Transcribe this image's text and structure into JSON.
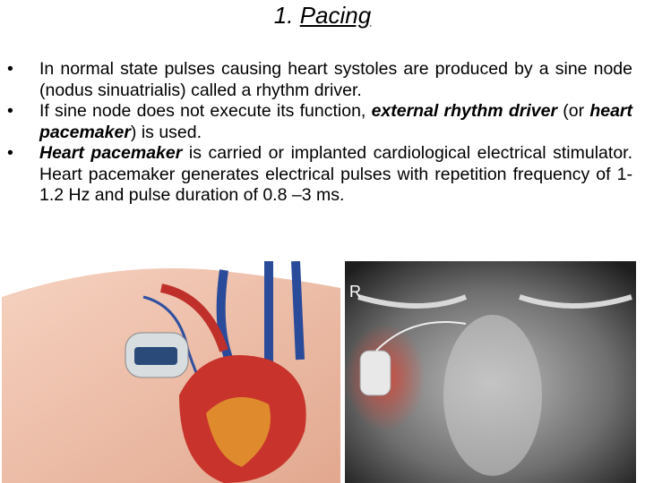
{
  "header": {
    "number": "1.",
    "title": "Pacing"
  },
  "bullets": [
    [
      {
        "text": "In normal state pulses causing heart systoles are produced by a sine node (nodus sinuatrialis) called a rhythm driver.",
        "emphasis": false
      }
    ],
    [
      {
        "text": "If sine node does not execute its function, ",
        "emphasis": false
      },
      {
        "text": "external rhythm driver",
        "emphasis": true
      },
      {
        "text": " (or ",
        "emphasis": false
      },
      {
        "text": "heart pacemaker",
        "emphasis": true
      },
      {
        "text": ") is used.",
        "emphasis": false
      }
    ],
    [
      {
        "text": "Heart pacemaker",
        "emphasis": true
      },
      {
        "text": " is carried or implanted cardiological electrical stimulator. Heart pacemaker generates electrical pulses with repetition frequency of 1-1.2 Hz and pulse duration of 0.8 –3 ms.",
        "emphasis": false
      }
    ]
  ],
  "xray": {
    "marker": "R"
  }
}
